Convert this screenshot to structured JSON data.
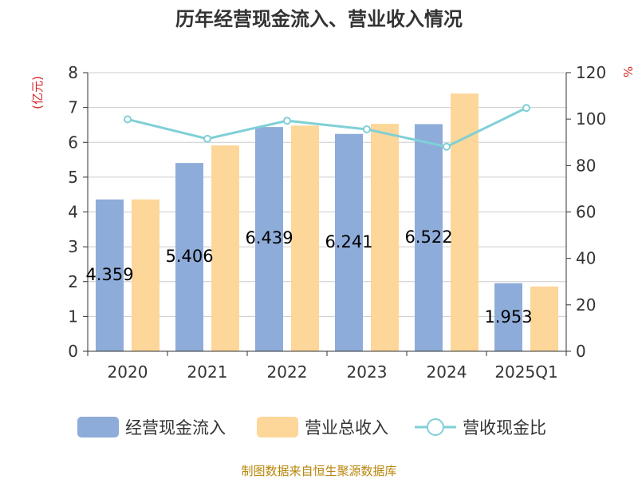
{
  "chart_data": {
    "type": "bar",
    "title": "历年经营现金流入、营业收入情况",
    "categories": [
      "2020",
      "2021",
      "2022",
      "2023",
      "2024",
      "2025Q1"
    ],
    "left_axis": {
      "unit": "(亿元)",
      "range": [
        0,
        8
      ],
      "ticks": [
        0,
        1,
        2,
        3,
        4,
        5,
        6,
        7,
        8
      ]
    },
    "right_axis": {
      "unit": "%",
      "range": [
        0,
        120
      ],
      "ticks": [
        0,
        20,
        40,
        60,
        80,
        100,
        120
      ]
    },
    "grid": true,
    "legend_position": "bottom",
    "series": [
      {
        "name": "经营现金流入",
        "type": "bar",
        "axis": "left",
        "color": "#8eacd9",
        "values": [
          4.359,
          5.406,
          6.439,
          6.241,
          6.522,
          1.953
        ],
        "labels": [
          "4.359",
          "5.406",
          "6.439",
          "6.241",
          "6.522",
          "1.953"
        ]
      },
      {
        "name": "营业总收入",
        "type": "bar",
        "axis": "left",
        "color": "#fdd699",
        "values": [
          4.36,
          5.91,
          6.48,
          6.53,
          7.4,
          1.86
        ]
      },
      {
        "name": "营收现金比",
        "type": "line",
        "axis": "right",
        "color": "#7fd0d6",
        "values": [
          99.9,
          91.5,
          99.3,
          95.6,
          88.1,
          104.8
        ]
      }
    ]
  },
  "source": "制图数据来自恒生聚源数据库"
}
